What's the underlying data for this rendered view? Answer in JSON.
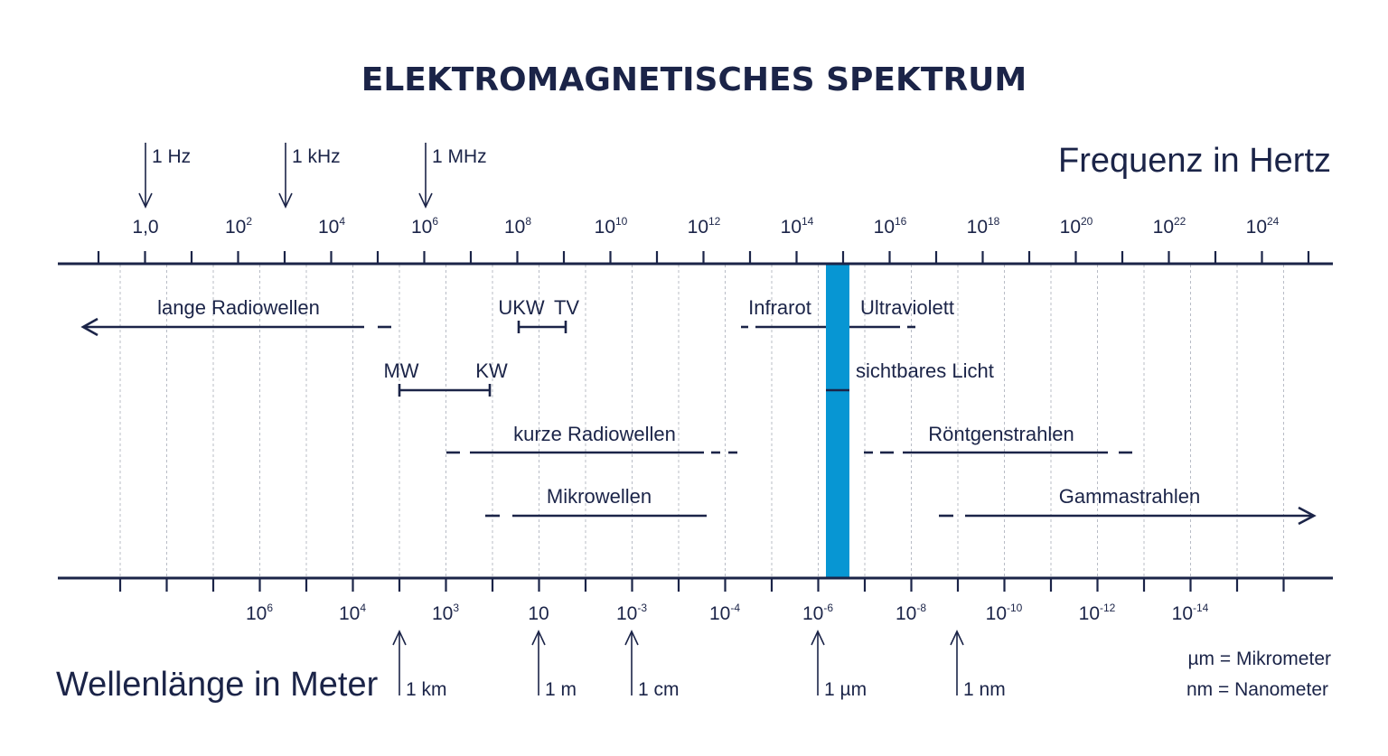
{
  "title": "ELEKTROMAGNETISCHES SPEKTRUM",
  "frequency_axis": {
    "title": "Frequenz in Hertz",
    "labels": [
      {
        "base": "1,0",
        "exp": ""
      },
      {
        "base": "10",
        "exp": "2"
      },
      {
        "base": "10",
        "exp": "4"
      },
      {
        "base": "10",
        "exp": "6"
      },
      {
        "base": "10",
        "exp": "8"
      },
      {
        "base": "10",
        "exp": "10"
      },
      {
        "base": "10",
        "exp": "12"
      },
      {
        "base": "10",
        "exp": "14"
      },
      {
        "base": "10",
        "exp": "16"
      },
      {
        "base": "10",
        "exp": "18"
      },
      {
        "base": "10",
        "exp": "20"
      },
      {
        "base": "10",
        "exp": "22"
      },
      {
        "base": "10",
        "exp": "24"
      }
    ],
    "markers": [
      "1 Hz",
      "1 kHz",
      "1 MHz"
    ]
  },
  "wavelength_axis": {
    "title": "Wellenlänge in Meter",
    "labels": [
      {
        "base": "10",
        "exp": "6"
      },
      {
        "base": "10",
        "exp": "4"
      },
      {
        "base": "10",
        "exp": "3"
      },
      {
        "base": "10",
        "exp": ""
      },
      {
        "base": "10",
        "exp": "-3"
      },
      {
        "base": "10",
        "exp": "-4"
      },
      {
        "base": "10",
        "exp": "-6"
      },
      {
        "base": "10",
        "exp": "-8"
      },
      {
        "base": "10",
        "exp": "-10"
      },
      {
        "base": "10",
        "exp": "-12"
      },
      {
        "base": "10",
        "exp": "-14"
      }
    ],
    "markers": [
      "1 km",
      "1 m",
      "1 cm",
      "1 µm",
      "1 nm"
    ]
  },
  "bands": {
    "lange_radiowellen": "lange Radiowellen",
    "ukw": "UKW",
    "tv": "TV",
    "infrarot": "Infrarot",
    "ultraviolett": "Ultraviolett",
    "mw": "MW",
    "kw": "KW",
    "sichtbares_licht": "sichtbares Licht",
    "kurze_radiowellen": "kurze Radiowellen",
    "roentgenstrahlen": "Röntgenstrahlen",
    "mikrowellen": "Mikrowellen",
    "gammastrahlen": "Gammastrahlen"
  },
  "legend": {
    "micrometer": "µm = Mikrometer",
    "nanometer": "nm = Nanometer"
  },
  "colors": {
    "ink": "#1b2448",
    "visible_light": "#0796d3",
    "grid": "#b8bcc6"
  }
}
